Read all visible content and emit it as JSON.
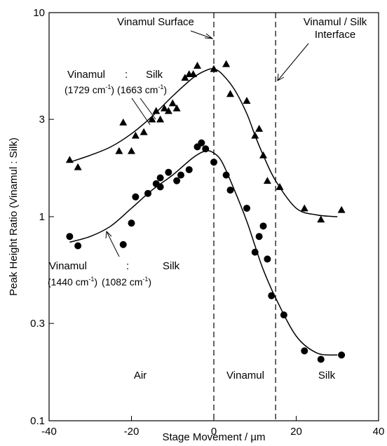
{
  "chart_data": {
    "type": "scatter",
    "log_y": true,
    "grid": false,
    "ylabel": "Peak Height Ratio (Vinamul : Silk)",
    "xlabel": "Stage Movement / µm",
    "xlim": [
      -40,
      40
    ],
    "xticks": [
      -40,
      -20,
      0,
      20,
      40
    ],
    "ylim": [
      0.1,
      10
    ],
    "yticks": [
      0.1,
      0.3,
      1,
      3,
      10
    ],
    "reference_lines": [
      0,
      15
    ],
    "annotations": {
      "surface": "Vinamul Surface",
      "interface": [
        "Vinamul / Silk",
        "Interface"
      ],
      "upper": [
        "Vinamul",
        ":",
        "Silk",
        "(1729 cm",
        "-1",
        ")",
        "(1663 cm",
        "-1",
        ")"
      ],
      "lower": [
        "Vinamul",
        ":",
        "Silk",
        "(1440 cm",
        "-1",
        ")",
        "(1082 cm",
        "-1",
        ")"
      ],
      "regions": [
        "Air",
        "Vinamul",
        "Silk"
      ]
    },
    "series": [
      {
        "marker": "triangle",
        "color": "#000000",
        "x": [
          -35,
          -33,
          -23,
          -22,
          -20,
          -19,
          -17,
          -15,
          -14,
          -13,
          -12,
          -11,
          -10,
          -9,
          -7,
          -6,
          -5,
          -4,
          0,
          3,
          4,
          8,
          10,
          11,
          12,
          13,
          16,
          22,
          26,
          31
        ],
        "values": [
          1.9,
          1.75,
          2.1,
          2.9,
          2.1,
          2.5,
          2.6,
          3.0,
          3.3,
          3.0,
          3.4,
          3.3,
          3.6,
          3.4,
          4.8,
          5.0,
          5.0,
          5.5,
          5.3,
          5.6,
          4.0,
          3.7,
          2.5,
          2.7,
          2.0,
          1.5,
          1.4,
          1.1,
          0.97,
          1.08
        ]
      },
      {
        "marker": "circle",
        "color": "#000000",
        "x": [
          -35,
          -33,
          -22,
          -20,
          -19,
          -16,
          -14,
          -13,
          -13,
          -11,
          -9,
          -8,
          -6,
          -4,
          -3,
          -2,
          0,
          3,
          4,
          8,
          10,
          11,
          12,
          13,
          14,
          17,
          22,
          26,
          31
        ],
        "values": [
          0.8,
          0.72,
          0.73,
          0.93,
          1.25,
          1.3,
          1.45,
          1.55,
          1.4,
          1.65,
          1.5,
          1.6,
          1.7,
          2.2,
          2.3,
          2.15,
          1.85,
          1.6,
          1.35,
          1.1,
          0.67,
          0.8,
          0.9,
          0.62,
          0.41,
          0.33,
          0.22,
          0.2,
          0.21
        ]
      },
      {
        "marker": "line",
        "color": "#000000",
        "x": [
          -35,
          -30,
          -25,
          -20,
          -15,
          -10,
          -5,
          -2,
          0,
          2,
          5,
          8,
          10,
          12,
          15,
          20,
          25,
          30
        ],
        "values": [
          1.85,
          2.0,
          2.2,
          2.55,
          3.1,
          3.9,
          4.8,
          5.2,
          5.3,
          5.0,
          4.2,
          3.2,
          2.5,
          2.0,
          1.5,
          1.1,
          1.02,
          1.0
        ]
      },
      {
        "marker": "line",
        "color": "#000000",
        "x": [
          -35,
          -30,
          -25,
          -20,
          -15,
          -10,
          -5,
          -2,
          0,
          2,
          5,
          8,
          10,
          12,
          15,
          20,
          25,
          30
        ],
        "values": [
          0.75,
          0.8,
          0.9,
          1.1,
          1.35,
          1.6,
          1.95,
          2.1,
          2.05,
          1.85,
          1.35,
          0.95,
          0.72,
          0.55,
          0.4,
          0.26,
          0.215,
          0.21
        ]
      }
    ]
  }
}
